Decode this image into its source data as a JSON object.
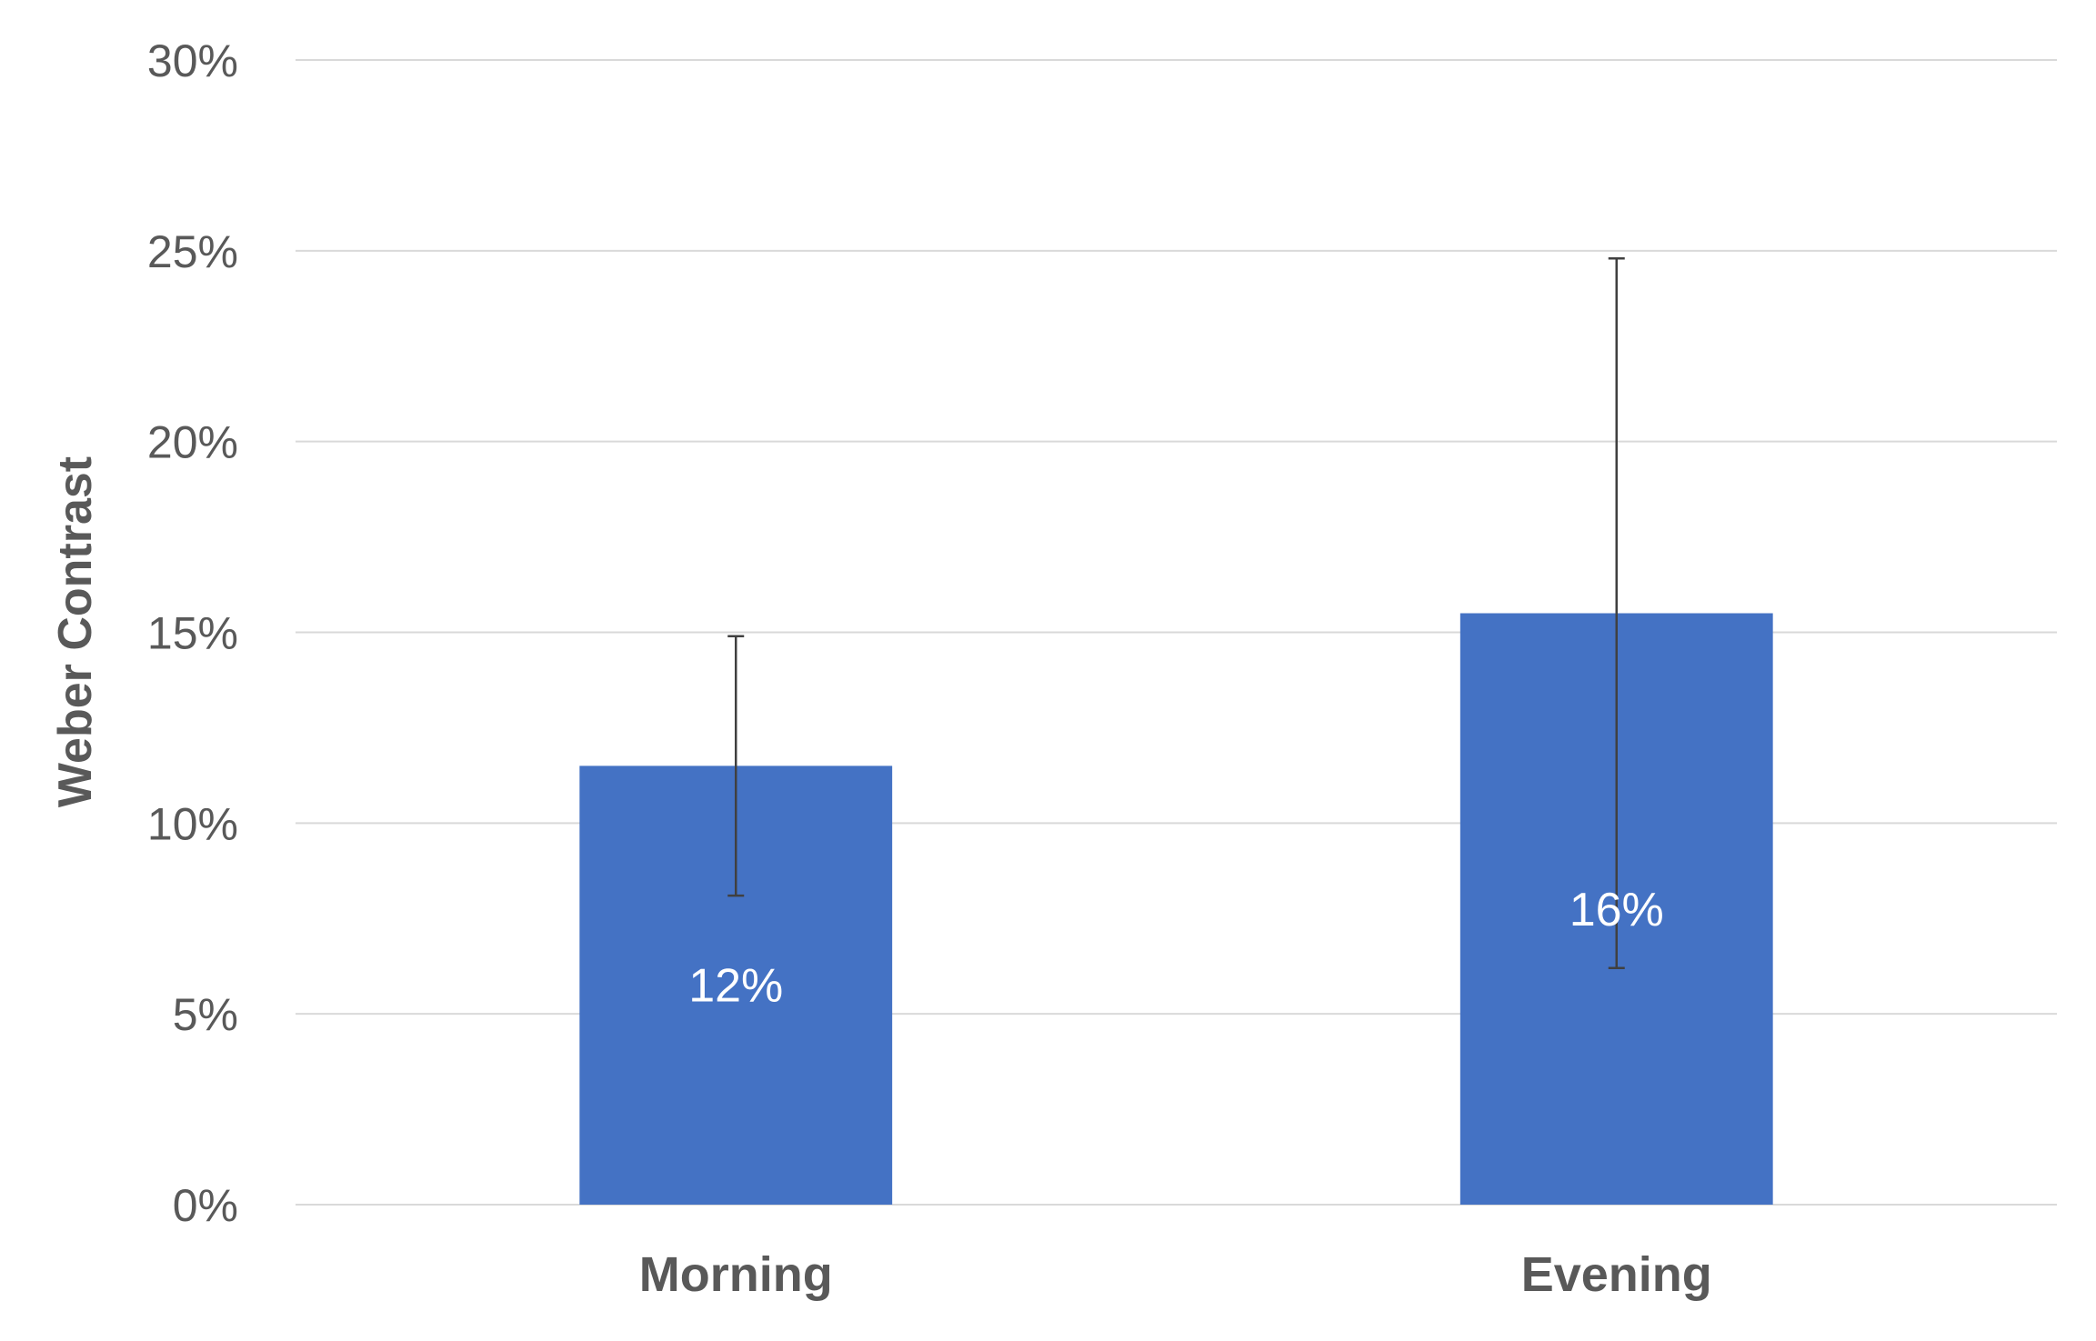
{
  "chart_data": {
    "type": "bar",
    "categories": [
      "Morning",
      "Evening"
    ],
    "values": [
      11.5,
      15.5
    ],
    "data_labels": [
      "12%",
      "16%"
    ],
    "error_bars": {
      "lower": [
        8.1,
        6.2
      ],
      "upper": [
        14.9,
        24.8
      ]
    },
    "title": "",
    "xlabel": "",
    "ylabel": "Weber Contrast",
    "ylim": [
      0,
      30
    ],
    "yticks": [
      0,
      5,
      10,
      15,
      20,
      25,
      30
    ],
    "ytick_labels": [
      "0%",
      "5%",
      "10%",
      "15%",
      "20%",
      "25%",
      "30%"
    ],
    "grid": true,
    "legend": "none",
    "colors": {
      "bar": "#4472C4",
      "grid": "#D9D9D9",
      "error_bar": "#404040",
      "text": "#595959"
    }
  }
}
